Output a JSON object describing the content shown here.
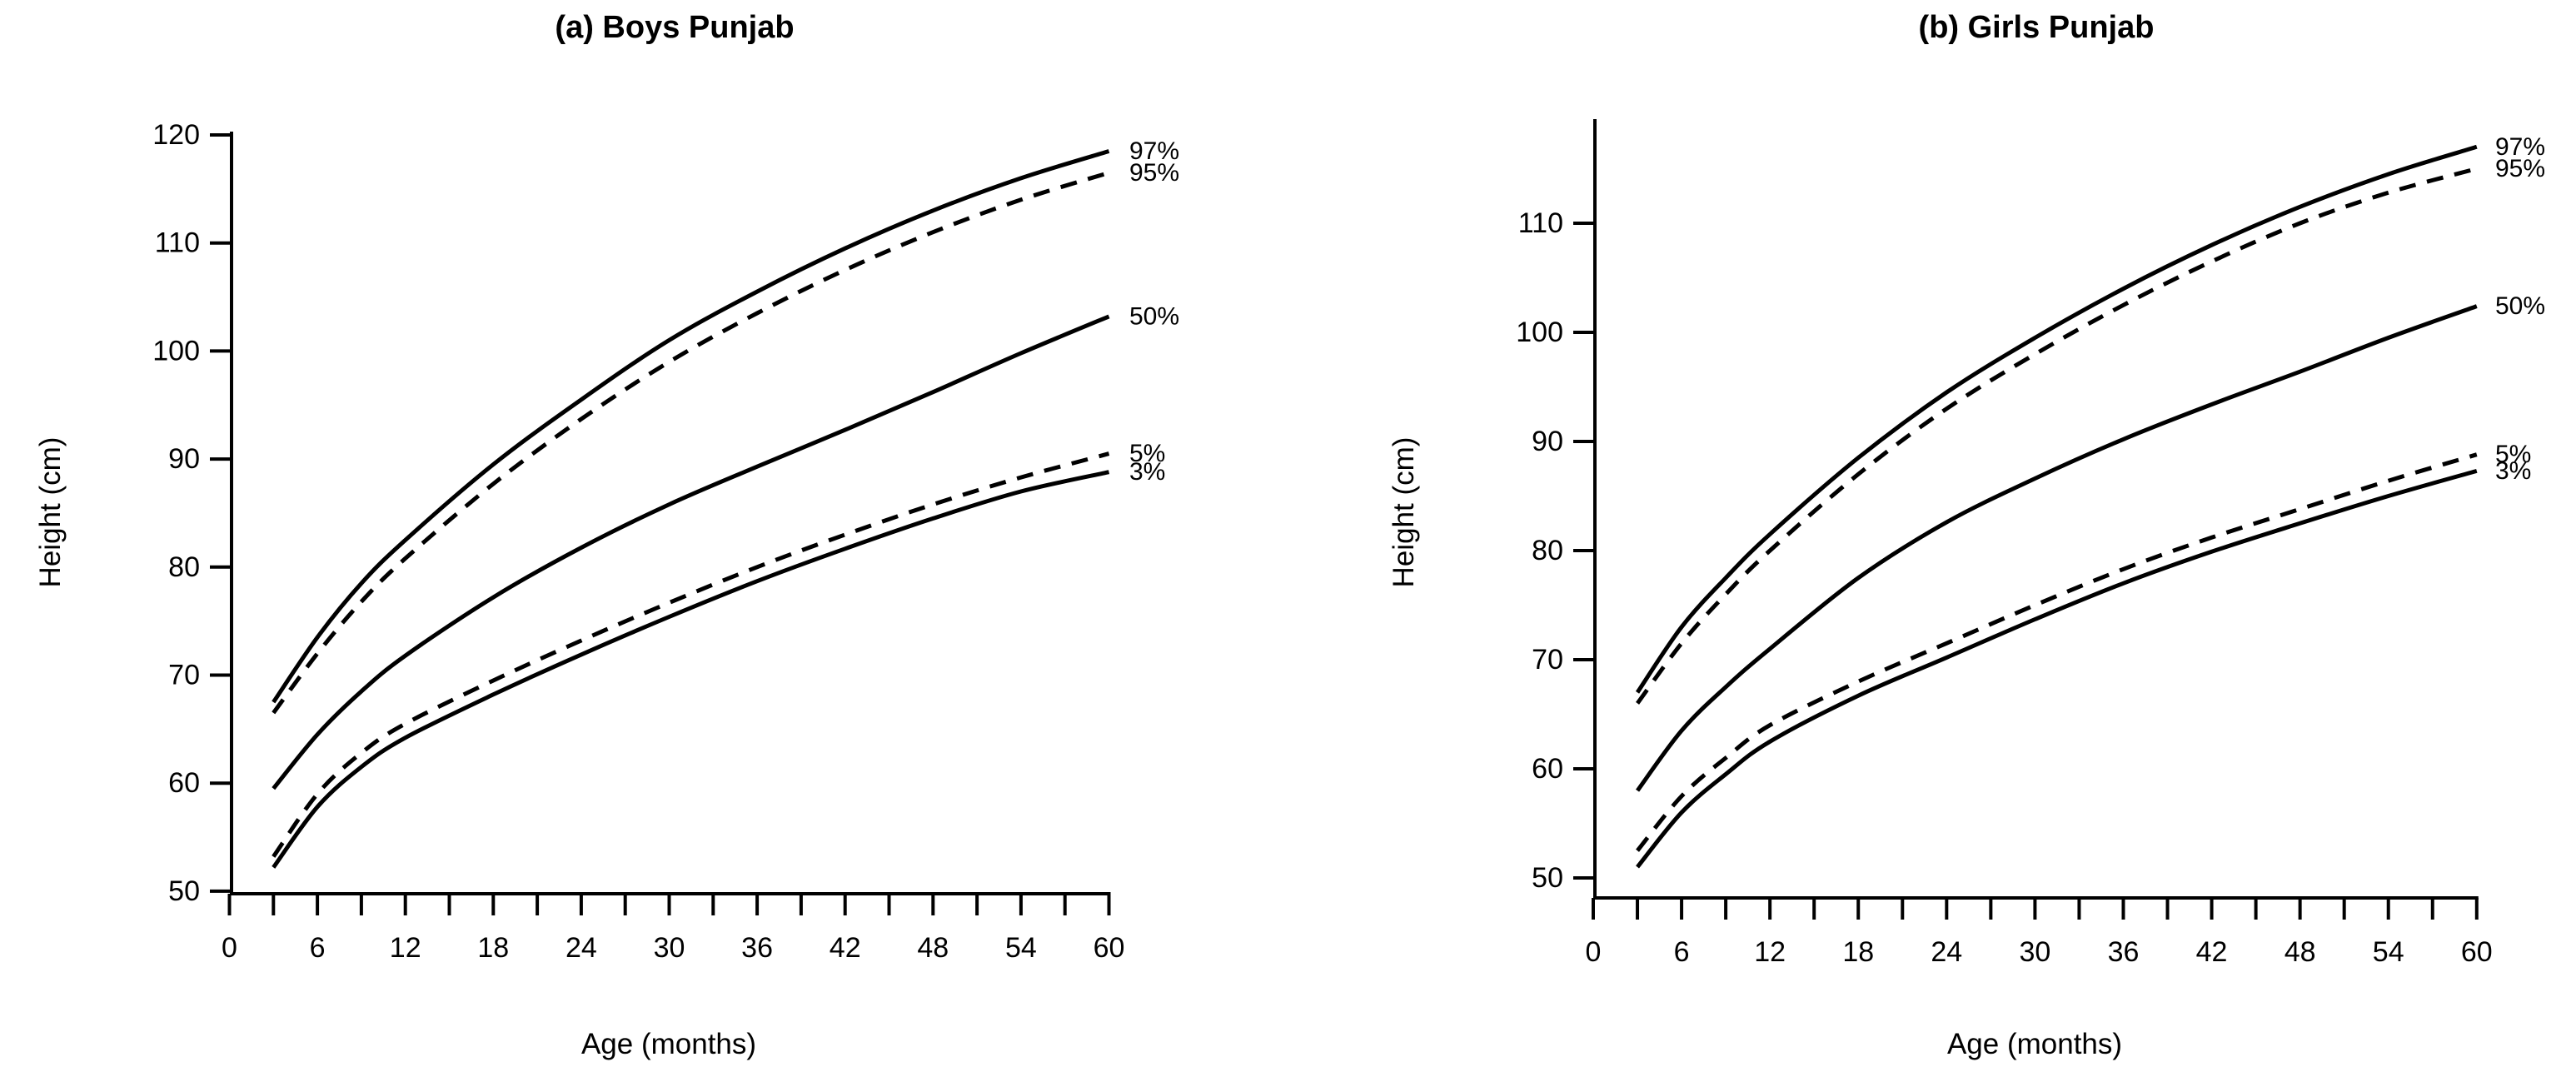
{
  "figure": {
    "background": "#ffffff",
    "line_color": "#000000",
    "text_color": "#000000"
  },
  "chart_data": [
    {
      "type": "line",
      "panel": "a",
      "title": "(a) Boys Punjab",
      "xlabel": "Age (months)",
      "ylabel": "Height (cm)",
      "xlim": [
        0,
        60
      ],
      "ylim": [
        50,
        120
      ],
      "grid": false,
      "legend_position": "right-edge-labels",
      "xticks_labeled": [
        0,
        6,
        12,
        18,
        24,
        30,
        36,
        42,
        48,
        54,
        60
      ],
      "xtick_minor_step": 3,
      "yticks": [
        50,
        60,
        70,
        80,
        90,
        100,
        110,
        120
      ],
      "x": [
        3,
        6,
        9,
        12,
        18,
        24,
        30,
        36,
        42,
        48,
        54,
        60
      ],
      "series": [
        {
          "name": "97%",
          "line_style": "solid",
          "values": [
            67.5,
            73.5,
            78.5,
            82.5,
            89.5,
            95.5,
            101.0,
            105.5,
            109.5,
            113.0,
            116.0,
            118.5
          ]
        },
        {
          "name": "95%",
          "line_style": "dashed",
          "values": [
            66.5,
            72.0,
            76.8,
            80.8,
            87.7,
            93.7,
            99.0,
            103.5,
            107.5,
            111.0,
            114.0,
            116.5
          ]
        },
        {
          "name": "50%",
          "line_style": "solid",
          "values": [
            59.5,
            64.5,
            68.5,
            71.8,
            77.2,
            81.8,
            85.8,
            89.3,
            92.7,
            96.2,
            99.8,
            103.2
          ]
        },
        {
          "name": "5%",
          "line_style": "dashed",
          "values": [
            53.2,
            59.0,
            62.8,
            65.5,
            69.5,
            73.2,
            76.7,
            80.0,
            83.0,
            85.8,
            88.3,
            90.5
          ]
        },
        {
          "name": "3%",
          "line_style": "solid",
          "values": [
            52.2,
            57.8,
            61.5,
            64.2,
            68.2,
            71.9,
            75.4,
            78.7,
            81.7,
            84.5,
            87.0,
            88.8
          ]
        }
      ]
    },
    {
      "type": "line",
      "panel": "b",
      "title": "(b) Girls Punjab",
      "xlabel": "Age (months)",
      "ylabel": "Height (cm)",
      "xlim": [
        0,
        60
      ],
      "ylim": [
        48,
        119
      ],
      "grid": false,
      "legend_position": "right-edge-labels",
      "xticks_labeled": [
        0,
        6,
        12,
        18,
        24,
        30,
        36,
        42,
        48,
        54,
        60
      ],
      "xtick_minor_step": 3,
      "yticks": [
        50,
        60,
        70,
        80,
        90,
        100,
        110
      ],
      "x": [
        3,
        6,
        9,
        12,
        18,
        24,
        30,
        36,
        42,
        48,
        54,
        60
      ],
      "series": [
        {
          "name": "97%",
          "line_style": "solid",
          "values": [
            67.0,
            73.0,
            77.5,
            81.5,
            88.5,
            94.5,
            99.5,
            104.0,
            108.0,
            111.5,
            114.5,
            117.0
          ]
        },
        {
          "name": "95%",
          "line_style": "dashed",
          "values": [
            66.0,
            71.5,
            76.0,
            80.0,
            87.0,
            93.0,
            98.0,
            102.5,
            106.5,
            110.0,
            112.8,
            115.0
          ]
        },
        {
          "name": "50%",
          "line_style": "solid",
          "values": [
            58.0,
            63.5,
            67.5,
            71.0,
            77.5,
            82.6,
            86.6,
            90.2,
            93.4,
            96.4,
            99.5,
            102.4
          ]
        },
        {
          "name": "5%",
          "line_style": "dashed",
          "values": [
            52.5,
            57.5,
            61.0,
            64.0,
            68.0,
            71.5,
            75.0,
            78.3,
            81.2,
            83.8,
            86.4,
            88.8
          ]
        },
        {
          "name": "3%",
          "line_style": "solid",
          "values": [
            51.0,
            56.0,
            59.5,
            62.5,
            66.7,
            70.2,
            73.7,
            77.0,
            79.9,
            82.5,
            85.0,
            87.3
          ]
        }
      ]
    }
  ]
}
